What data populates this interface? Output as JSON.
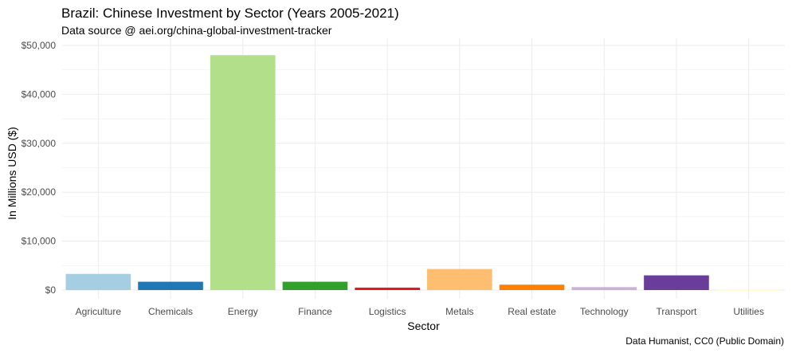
{
  "header": {
    "title": "Brazil: Chinese Investment by Sector (Years 2005-2021)",
    "subtitle": "Data source @ aei.org/china-global-investment-tracker"
  },
  "footer": {
    "caption": "Data Humanist, CC0 (Public Domain)"
  },
  "chart_data": {
    "type": "bar",
    "title": "Brazil: Chinese Investment by Sector (Years 2005-2021)",
    "subtitle": "Data source @ aei.org/china-global-investment-tracker",
    "xlabel": "Sector",
    "ylabel": "In Millions USD ($)",
    "categories": [
      "Agriculture",
      "Chemicals",
      "Energy",
      "Finance",
      "Logistics",
      "Metals",
      "Real estate",
      "Technology",
      "Transport",
      "Utilities"
    ],
    "values": [
      3300,
      1700,
      48000,
      1700,
      500,
      4300,
      1100,
      600,
      3000,
      100
    ],
    "colors": [
      "#a6cee3",
      "#1f78b4",
      "#b2df8a",
      "#33a02c",
      "#e31a1c",
      "#fdbf6f",
      "#ff7f00",
      "#cab2d6",
      "#6a3d9a",
      "#ffff99"
    ],
    "ylim": [
      0,
      50000
    ],
    "yticks": [
      0,
      10000,
      20000,
      30000,
      40000,
      50000
    ],
    "ytick_labels": [
      "$0",
      "$10,000",
      "$20,000",
      "$30,000",
      "$40,000",
      "$50,000"
    ],
    "grid": true,
    "legend": "none"
  }
}
